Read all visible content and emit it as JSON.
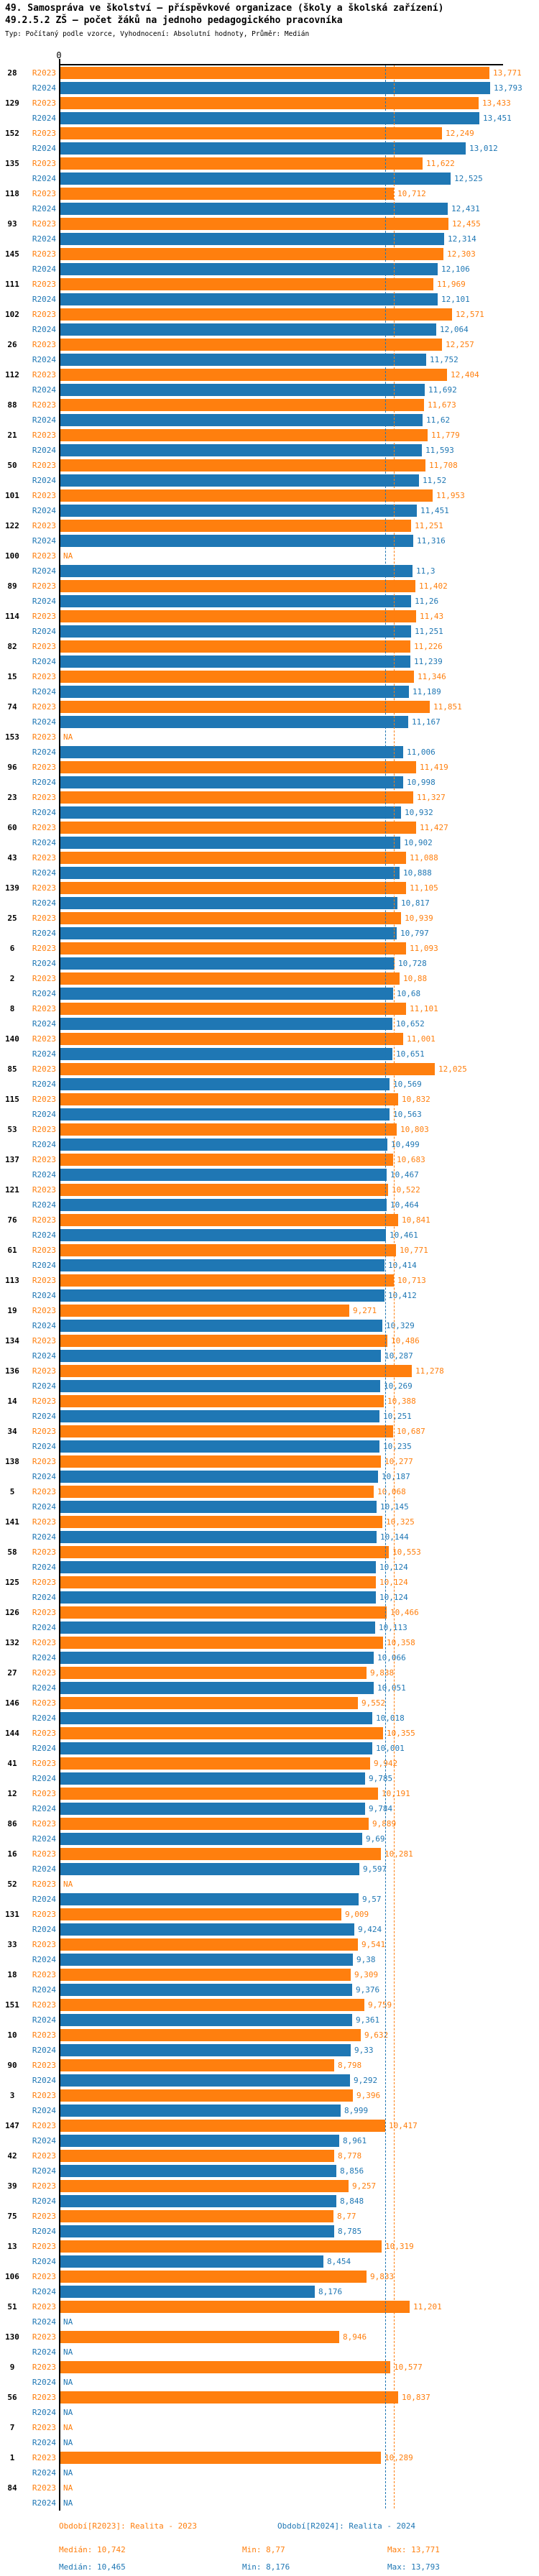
{
  "title_line1": "49. Samospráva ve školství – příspěvkové organizace (školy a školská zařízení)",
  "title_line2": "49.2.5.2 ZŠ – počet žáků na jednoho pedagogického pracovníka",
  "subtitle": "Typ: Počítaný podle vzorce, Vyhodnocení: Absolutní hodnoty, Průměr: Medián",
  "axis": {
    "zero_label": "0"
  },
  "na_label": "NA",
  "colors": {
    "r2023": "#ff7f0e",
    "r2024": "#1f77b4",
    "axis": "#000000"
  },
  "legend": {
    "r2023": "Období[R2023]: Realita - 2023",
    "r2024": "Období[R2024]: Realita - 2024"
  },
  "stats": {
    "r2023": {
      "median": "Medián: 10,742",
      "min": "Min: 8,77",
      "max": "Max: 13,771"
    },
    "r2024": {
      "median": "Medián: 10,465",
      "min": "Min: 8,176",
      "max": "Max: 13,793"
    }
  },
  "chart_data": {
    "type": "bar",
    "orientation": "horizontal",
    "decimal_separator": ",",
    "series_names": [
      "R2023",
      "R2024"
    ],
    "xlim": [
      0,
      14.26
    ],
    "medians": {
      "R2023": 10.742,
      "R2024": 10.465
    },
    "groups": [
      {
        "cat": "28",
        "r2023": "13,771",
        "r2024": "13,793"
      },
      {
        "cat": "129",
        "r2023": "13,433",
        "r2024": "13,451"
      },
      {
        "cat": "152",
        "r2023": "12,249",
        "r2024": "13,012"
      },
      {
        "cat": "135",
        "r2023": "11,622",
        "r2024": "12,525"
      },
      {
        "cat": "118",
        "r2023": "10,712",
        "r2024": "12,431"
      },
      {
        "cat": "93",
        "r2023": "12,455",
        "r2024": "12,314"
      },
      {
        "cat": "145",
        "r2023": "12,303",
        "r2024": "12,106"
      },
      {
        "cat": "111",
        "r2023": "11,969",
        "r2024": "12,101"
      },
      {
        "cat": "102",
        "r2023": "12,571",
        "r2024": "12,064"
      },
      {
        "cat": "26",
        "r2023": "12,257",
        "r2024": "11,752"
      },
      {
        "cat": "112",
        "r2023": "12,404",
        "r2024": "11,692"
      },
      {
        "cat": "88",
        "r2023": "11,673",
        "r2024": "11,62"
      },
      {
        "cat": "21",
        "r2023": "11,779",
        "r2024": "11,593"
      },
      {
        "cat": "50",
        "r2023": "11,708",
        "r2024": "11,52"
      },
      {
        "cat": "101",
        "r2023": "11,953",
        "r2024": "11,451"
      },
      {
        "cat": "122",
        "r2023": "11,251",
        "r2024": "11,316"
      },
      {
        "cat": "100",
        "r2023": "NA",
        "r2024": "11,3"
      },
      {
        "cat": "89",
        "r2023": "11,402",
        "r2024": "11,26"
      },
      {
        "cat": "114",
        "r2023": "11,43",
        "r2024": "11,251"
      },
      {
        "cat": "82",
        "r2023": "11,226",
        "r2024": "11,239"
      },
      {
        "cat": "15",
        "r2023": "11,346",
        "r2024": "11,189"
      },
      {
        "cat": "74",
        "r2023": "11,851",
        "r2024": "11,167"
      },
      {
        "cat": "153",
        "r2023": "NA",
        "r2024": "11,006"
      },
      {
        "cat": "96",
        "r2023": "11,419",
        "r2024": "10,998"
      },
      {
        "cat": "23",
        "r2023": "11,327",
        "r2024": "10,932"
      },
      {
        "cat": "60",
        "r2023": "11,427",
        "r2024": "10,902"
      },
      {
        "cat": "43",
        "r2023": "11,088",
        "r2024": "10,888"
      },
      {
        "cat": "139",
        "r2023": "11,105",
        "r2024": "10,817"
      },
      {
        "cat": "25",
        "r2023": "10,939",
        "r2024": "10,797"
      },
      {
        "cat": "6",
        "r2023": "11,093",
        "r2024": "10,728"
      },
      {
        "cat": "2",
        "r2023": "10,88",
        "r2024": "10,68"
      },
      {
        "cat": "8",
        "r2023": "11,101",
        "r2024": "10,652"
      },
      {
        "cat": "140",
        "r2023": "11,001",
        "r2024": "10,651"
      },
      {
        "cat": "85",
        "r2023": "12,025",
        "r2024": "10,569"
      },
      {
        "cat": "115",
        "r2023": "10,832",
        "r2024": "10,563"
      },
      {
        "cat": "53",
        "r2023": "10,803",
        "r2024": "10,499"
      },
      {
        "cat": "137",
        "r2023": "10,683",
        "r2024": "10,467"
      },
      {
        "cat": "121",
        "r2023": "10,522",
        "r2024": "10,464"
      },
      {
        "cat": "76",
        "r2023": "10,841",
        "r2024": "10,461"
      },
      {
        "cat": "61",
        "r2023": "10,771",
        "r2024": "10,414"
      },
      {
        "cat": "113",
        "r2023": "10,713",
        "r2024": "10,412"
      },
      {
        "cat": "19",
        "r2023": "9,271",
        "r2024": "10,329"
      },
      {
        "cat": "134",
        "r2023": "10,486",
        "r2024": "10,287"
      },
      {
        "cat": "136",
        "r2023": "11,278",
        "r2024": "10,269"
      },
      {
        "cat": "14",
        "r2023": "10,388",
        "r2024": "10,251"
      },
      {
        "cat": "34",
        "r2023": "10,687",
        "r2024": "10,235"
      },
      {
        "cat": "138",
        "r2023": "10,277",
        "r2024": "10,187"
      },
      {
        "cat": "5",
        "r2023": "10,068",
        "r2024": "10,145"
      },
      {
        "cat": "141",
        "r2023": "10,325",
        "r2024": "10,144"
      },
      {
        "cat": "58",
        "r2023": "10,553",
        "r2024": "10,124"
      },
      {
        "cat": "125",
        "r2023": "10,124",
        "r2024": "10,124"
      },
      {
        "cat": "126",
        "r2023": "10,466",
        "r2024": "10,113"
      },
      {
        "cat": "132",
        "r2023": "10,358",
        "r2024": "10,066"
      },
      {
        "cat": "27",
        "r2023": "9,838",
        "r2024": "10,051"
      },
      {
        "cat": "146",
        "r2023": "9,552",
        "r2024": "10,018"
      },
      {
        "cat": "144",
        "r2023": "10,355",
        "r2024": "10,001"
      },
      {
        "cat": "41",
        "r2023": "9,942",
        "r2024": "9,785"
      },
      {
        "cat": "12",
        "r2023": "10,191",
        "r2024": "9,784"
      },
      {
        "cat": "86",
        "r2023": "9,889",
        "r2024": "9,69"
      },
      {
        "cat": "16",
        "r2023": "10,281",
        "r2024": "9,597"
      },
      {
        "cat": "52",
        "r2023": "NA",
        "r2024": "9,57"
      },
      {
        "cat": "131",
        "r2023": "9,009",
        "r2024": "9,424"
      },
      {
        "cat": "33",
        "r2023": "9,541",
        "r2024": "9,38"
      },
      {
        "cat": "18",
        "r2023": "9,309",
        "r2024": "9,376"
      },
      {
        "cat": "151",
        "r2023": "9,759",
        "r2024": "9,361"
      },
      {
        "cat": "10",
        "r2023": "9,632",
        "r2024": "9,33"
      },
      {
        "cat": "90",
        "r2023": "8,798",
        "r2024": "9,292"
      },
      {
        "cat": "3",
        "r2023": "9,396",
        "r2024": "8,999"
      },
      {
        "cat": "147",
        "r2023": "10,417",
        "r2024": "8,961"
      },
      {
        "cat": "42",
        "r2023": "8,778",
        "r2024": "8,856"
      },
      {
        "cat": "39",
        "r2023": "9,257",
        "r2024": "8,848"
      },
      {
        "cat": "75",
        "r2023": "8,77",
        "r2024": "8,785"
      },
      {
        "cat": "13",
        "r2023": "10,319",
        "r2024": "8,454"
      },
      {
        "cat": "106",
        "r2023": "9,833",
        "r2024": "8,176"
      },
      {
        "cat": "51",
        "r2023": "11,201",
        "r2024": "NA"
      },
      {
        "cat": "130",
        "r2023": "8,946",
        "r2024": "NA"
      },
      {
        "cat": "9",
        "r2023": "10,577",
        "r2024": "NA"
      },
      {
        "cat": "56",
        "r2023": "10,837",
        "r2024": "NA"
      },
      {
        "cat": "7",
        "r2023": "NA",
        "r2024": "NA"
      },
      {
        "cat": "1",
        "r2023": "10,289",
        "r2024": "NA"
      },
      {
        "cat": "84",
        "r2023": "NA",
        "r2024": "NA"
      }
    ]
  }
}
